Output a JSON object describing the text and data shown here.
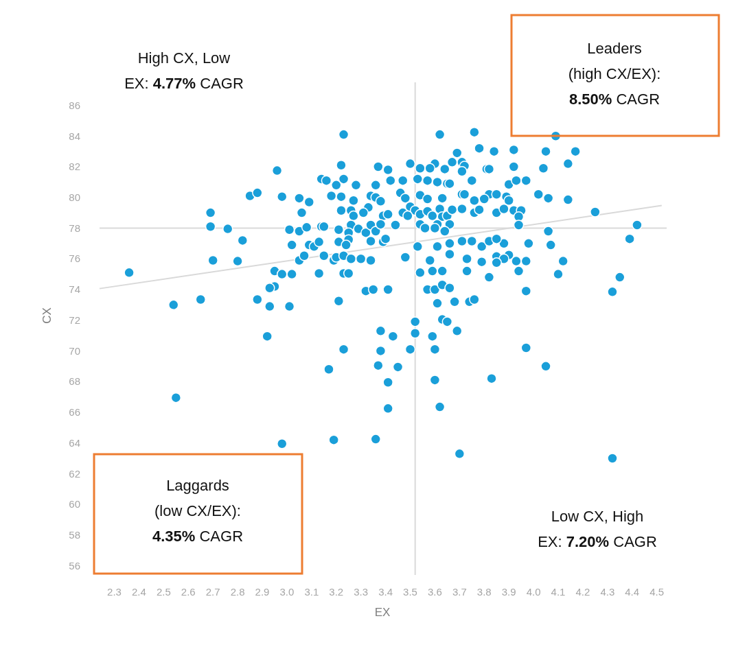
{
  "chart_data": {
    "type": "scatter",
    "xlabel": "EX",
    "ylabel": "CX",
    "xlim": [
      2.24,
      4.54
    ],
    "ylim": [
      55.4,
      87.5
    ],
    "xticks": [
      2.3,
      2.4,
      2.5,
      2.6,
      2.7,
      2.8,
      2.9,
      {
        "value": 3,
        "label": "3.0"
      },
      3.1,
      3.2,
      3.3,
      3.4,
      3.5,
      3.6,
      3.7,
      3.8,
      3.9,
      {
        "value": 4,
        "label": "4.0"
      },
      4.1,
      4.2,
      4.3,
      4.4,
      4.5
    ],
    "yticks": [
      56,
      58,
      60,
      62,
      64,
      66,
      68,
      70,
      72,
      74,
      76,
      78,
      80,
      82,
      84,
      86
    ],
    "grid": false,
    "marker": "circle",
    "ref_lines": [
      {
        "axis": "x",
        "value": 3.52,
        "color": "#d9d9d9"
      },
      {
        "axis": "y",
        "value": 78,
        "color": "#d9d9d9"
      }
    ],
    "annotations": [
      "High CX, Low\nEX: 4.77% CAGR",
      "Leaders\n(high CX/EX):\n8.50% CAGR",
      "Laggards\n(low CX/EX):\n4.35% CAGR",
      "Low CX, High\nEX: 7.20% CAGR"
    ],
    "series": [
      {
        "type": "line",
        "marker": "none",
        "color": "#d9d9d9",
        "x": [
          2.24,
          4.52
        ],
        "values": [
          74.06,
          79.47
        ]
      },
      {
        "color": "#1a9fd9",
        "x": [
          2.96,
          2.85,
          2.88,
          2.98,
          2.69,
          2.69,
          2.76,
          2.82,
          2.7,
          2.8,
          2.36,
          3.01,
          3.02,
          2.95,
          2.98,
          3.02,
          2.95,
          2.93,
          3.23,
          3.62,
          3.76,
          3.78,
          3.69,
          3.67,
          3.71,
          3.72,
          3.71,
          3.6,
          3.58,
          3.64,
          3.5,
          3.54,
          3.22,
          3.37,
          3.41,
          3.14,
          3.16,
          3.23,
          3.2,
          3.28,
          3.36,
          3.42,
          3.47,
          3.53,
          3.57,
          3.61,
          3.65,
          3.66,
          3.75,
          3.81,
          3.05,
          3.09,
          3.18,
          3.22,
          3.27,
          3.34,
          3.36,
          3.38,
          3.46,
          3.48,
          3.54,
          3.57,
          3.63,
          3.71,
          3.72,
          3.76,
          3.06,
          3.22,
          3.26,
          3.33,
          3.31,
          3.27,
          3.39,
          3.41,
          3.47,
          3.5,
          3.52,
          3.54,
          3.49,
          3.57,
          3.59,
          3.62,
          3.63,
          3.65,
          3.67,
          3.71,
          3.76,
          3.78,
          3.05,
          3.08,
          3.14,
          3.15,
          3.21,
          3.26,
          3.29,
          3.25,
          3.32,
          3.34,
          3.36,
          3.38,
          3.44,
          3.54,
          3.56,
          3.61,
          3.6,
          3.66,
          3.64,
          3.09,
          3.11,
          3.13,
          3.21,
          3.25,
          3.24,
          3.34,
          3.39,
          3.4,
          3.53,
          3.61,
          3.66,
          3.71,
          3.75,
          3.79,
          3.05,
          3.07,
          3.15,
          3.19,
          3.2,
          3.23,
          3.26,
          3.3,
          3.34,
          3.48,
          3.58,
          3.66,
          3.73,
          3.79,
          3.13,
          3.23,
          3.25,
          3.54,
          3.59,
          3.63,
          3.73,
          3.32,
          3.35,
          3.41,
          3.57,
          3.6,
          3.63,
          3.66,
          3.84,
          3.92,
          4.05,
          4.17,
          4.09,
          3.82,
          3.92,
          4.04,
          4.14,
          3.9,
          3.93,
          3.97,
          3.82,
          3.85,
          3.8,
          3.89,
          3.9,
          4.02,
          4.06,
          4.14,
          3.85,
          3.88,
          3.92,
          3.95,
          3.94,
          3.94,
          4.25,
          4.42,
          4.39,
          4.06,
          4.07,
          3.98,
          3.88,
          3.82,
          3.85,
          3.85,
          3.9,
          3.88,
          3.85,
          3.93,
          3.97,
          4.12,
          3.94,
          4.1,
          3.82,
          4.35,
          3.97,
          4.32,
          2.54,
          2.65,
          2.88,
          2.93,
          3.01,
          2.92,
          2.55,
          2.98,
          3.21,
          3.61,
          3.68,
          3.74,
          3.76,
          3.52,
          3.52,
          3.63,
          3.65,
          3.69,
          3.38,
          3.43,
          3.59,
          3.23,
          3.38,
          3.5,
          3.6,
          3.17,
          3.37,
          3.45,
          3.41,
          3.6,
          3.41,
          3.62,
          3.19,
          3.36,
          3.7,
          3.97,
          4.05,
          3.83,
          4.32
        ],
        "values": [
          81.75,
          80.1,
          80.3,
          80.05,
          79.0,
          78.1,
          77.95,
          77.2,
          75.9,
          75.85,
          75.1,
          77.9,
          76.9,
          75.2,
          75.0,
          75.0,
          74.2,
          74.1,
          84.1,
          84.1,
          84.25,
          83.2,
          82.9,
          82.3,
          82.3,
          82.05,
          81.7,
          82.2,
          81.9,
          81.85,
          82.2,
          81.9,
          82.1,
          82.0,
          81.8,
          81.2,
          81.1,
          81.2,
          80.8,
          80.8,
          80.8,
          81.1,
          81.1,
          81.2,
          81.1,
          81.0,
          80.9,
          80.9,
          81.1,
          81.85,
          79.95,
          79.7,
          80.1,
          80.05,
          79.8,
          80.1,
          80.0,
          79.75,
          80.3,
          79.95,
          80.15,
          79.9,
          79.95,
          80.2,
          80.2,
          79.8,
          79.0,
          79.15,
          79.15,
          79.35,
          79.0,
          78.8,
          78.8,
          78.9,
          79.0,
          79.4,
          79.15,
          78.9,
          78.8,
          79.1,
          78.8,
          79.25,
          78.75,
          78.8,
          79.2,
          79.25,
          79.0,
          79.2,
          77.8,
          78.05,
          78.1,
          78.1,
          77.9,
          78.2,
          77.95,
          77.7,
          77.7,
          78.2,
          77.8,
          78.25,
          78.2,
          78.25,
          78.0,
          78.25,
          78.0,
          78.25,
          77.8,
          76.9,
          76.8,
          77.1,
          77.1,
          77.25,
          76.9,
          77.15,
          77.1,
          77.3,
          76.8,
          76.8,
          77.0,
          77.15,
          77.15,
          76.8,
          75.9,
          76.2,
          76.2,
          75.9,
          76.1,
          76.2,
          76.0,
          76.0,
          75.9,
          76.1,
          75.9,
          76.3,
          76.0,
          75.8,
          75.05,
          75.05,
          75.05,
          75.1,
          75.2,
          75.2,
          75.2,
          73.9,
          74.0,
          74.0,
          74.0,
          74.0,
          74.3,
          74.1,
          83.0,
          83.1,
          83.0,
          83.0,
          84.0,
          81.85,
          82.0,
          81.9,
          82.2,
          80.85,
          81.1,
          81.1,
          80.2,
          80.2,
          79.9,
          80.05,
          79.8,
          80.2,
          79.95,
          79.85,
          79.0,
          79.25,
          79.15,
          79.15,
          78.75,
          78.2,
          79.05,
          78.2,
          77.3,
          77.8,
          76.9,
          77.0,
          77.0,
          77.15,
          77.3,
          76.15,
          76.25,
          76.0,
          75.75,
          75.85,
          75.85,
          75.85,
          75.2,
          75.0,
          74.8,
          74.8,
          73.9,
          73.85,
          73.0,
          73.35,
          73.35,
          72.9,
          72.9,
          70.95,
          66.95,
          63.95,
          73.25,
          73.1,
          73.2,
          73.2,
          73.35,
          71.9,
          71.15,
          72.05,
          71.9,
          71.3,
          71.3,
          70.95,
          70.95,
          70.1,
          70.0,
          70.1,
          70.1,
          68.8,
          69.05,
          68.95,
          67.95,
          68.1,
          66.25,
          66.35,
          64.2,
          64.25,
          63.3,
          70.2,
          69.0,
          68.2,
          63.0
        ]
      }
    ]
  }
}
